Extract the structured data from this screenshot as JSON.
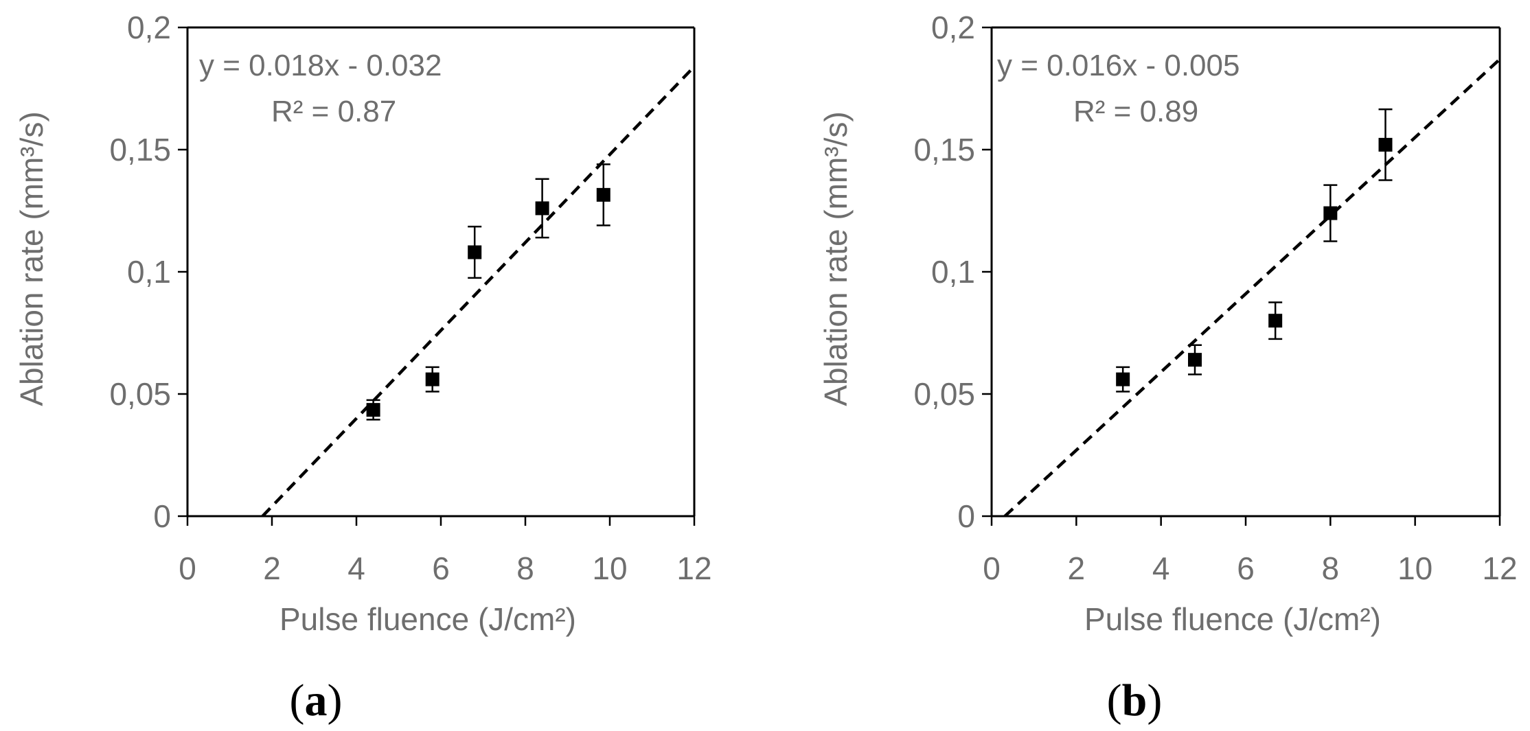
{
  "chart_data": [
    {
      "type": "scatter",
      "panel_label": {
        "open": "(",
        "letter": "a",
        "close": ")"
      },
      "xlabel": "Pulse fluence (J/cm²)",
      "ylabel": "Ablation rate (mm³/s)",
      "xlim": [
        0,
        12
      ],
      "ylim": [
        0,
        0.2
      ],
      "xticks": [
        0,
        2,
        4,
        6,
        8,
        10,
        12
      ],
      "yticks": [
        0,
        0.05,
        0.1,
        0.15,
        0.2
      ],
      "xtick_labels": [
        "0",
        "2",
        "4",
        "6",
        "8",
        "10",
        "12"
      ],
      "ytick_labels": [
        "0",
        "0,05",
        "0,1",
        "0,15",
        "0,2"
      ],
      "grid": false,
      "points": [
        {
          "x": 4.4,
          "y": 0.0435,
          "err": 0.004
        },
        {
          "x": 5.8,
          "y": 0.056,
          "err": 0.005
        },
        {
          "x": 6.8,
          "y": 0.108,
          "err": 0.0105
        },
        {
          "x": 8.4,
          "y": 0.126,
          "err": 0.012
        },
        {
          "x": 9.85,
          "y": 0.1315,
          "err": 0.0125
        }
      ],
      "trendline": {
        "slope": 0.018,
        "intercept": -0.032,
        "style": "dashed",
        "x_end": 12
      },
      "equation": "y = 0.018x - 0.032",
      "r_squared": "R² = 0.87"
    },
    {
      "type": "scatter",
      "panel_label": {
        "open": "(",
        "letter": "b",
        "close": ")"
      },
      "xlabel": "Pulse fluence (J/cm²)",
      "ylabel": "Ablation rate (mm³/s)",
      "xlim": [
        0,
        12
      ],
      "ylim": [
        0,
        0.2
      ],
      "xticks": [
        0,
        2,
        4,
        6,
        8,
        10,
        12
      ],
      "yticks": [
        0,
        0.05,
        0.1,
        0.15,
        0.2
      ],
      "xtick_labels": [
        "0",
        "2",
        "4",
        "6",
        "8",
        "10",
        "12"
      ],
      "ytick_labels": [
        "0",
        "0,05",
        "0,1",
        "0,15",
        "0,2"
      ],
      "grid": false,
      "points": [
        {
          "x": 3.1,
          "y": 0.056,
          "err": 0.005
        },
        {
          "x": 4.8,
          "y": 0.064,
          "err": 0.006
        },
        {
          "x": 6.7,
          "y": 0.08,
          "err": 0.0075
        },
        {
          "x": 8.0,
          "y": 0.124,
          "err": 0.0115
        },
        {
          "x": 9.3,
          "y": 0.152,
          "err": 0.0145
        }
      ],
      "trendline": {
        "slope": 0.016,
        "intercept": -0.005,
        "style": "dashed",
        "x_end": 12
      },
      "equation": "y = 0.016x - 0.005",
      "r_squared": "R² = 0.89"
    }
  ]
}
